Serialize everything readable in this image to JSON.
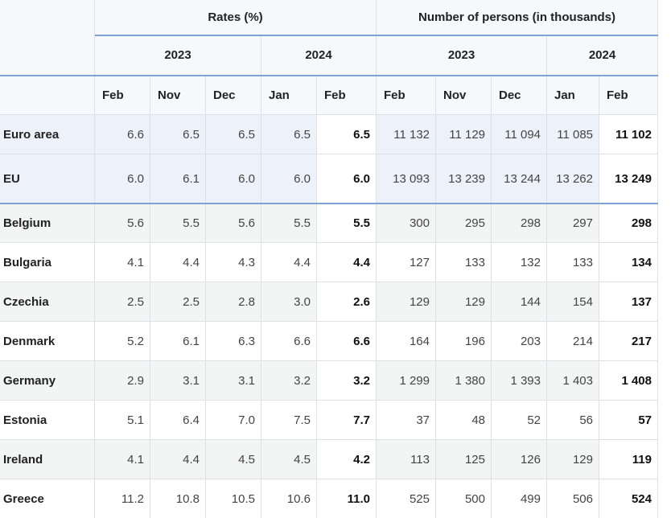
{
  "header": {
    "groups": [
      "Rates (%)",
      "Number of persons (in thousands)"
    ],
    "years": [
      "2023",
      "2024",
      "2023",
      "2024"
    ],
    "months": [
      "Feb",
      "Nov",
      "Dec",
      "Jan",
      "Feb",
      "Feb",
      "Nov",
      "Dec",
      "Jan",
      "Feb"
    ]
  },
  "rows": [
    {
      "label": "Euro area",
      "cells": [
        "6.6",
        "6.5",
        "6.5",
        "6.5",
        "6.5",
        "11 132",
        "11 129",
        "11 094",
        "11 085",
        "11 102"
      ]
    },
    {
      "label": "EU",
      "cells": [
        "6.0",
        "6.1",
        "6.0",
        "6.0",
        "6.0",
        "13 093",
        "13 239",
        "13 244",
        "13 262",
        "13 249"
      ]
    },
    {
      "label": "Belgium",
      "cells": [
        "5.6",
        "5.5",
        "5.6",
        "5.5",
        "5.5",
        "300",
        "295",
        "298",
        "297",
        "298"
      ]
    },
    {
      "label": "Bulgaria",
      "cells": [
        "4.1",
        "4.4",
        "4.3",
        "4.4",
        "4.4",
        "127",
        "133",
        "132",
        "133",
        "134"
      ]
    },
    {
      "label": "Czechia",
      "cells": [
        "2.5",
        "2.5",
        "2.8",
        "3.0",
        "2.6",
        "129",
        "129",
        "144",
        "154",
        "137"
      ]
    },
    {
      "label": "Denmark",
      "cells": [
        "5.2",
        "6.1",
        "6.3",
        "6.6",
        "6.6",
        "164",
        "196",
        "203",
        "214",
        "217"
      ]
    },
    {
      "label": "Germany",
      "cells": [
        "2.9",
        "3.1",
        "3.1",
        "3.2",
        "3.2",
        "1 299",
        "1 380",
        "1 393",
        "1 403",
        "1 408"
      ]
    },
    {
      "label": "Estonia",
      "cells": [
        "5.1",
        "6.4",
        "7.0",
        "7.5",
        "7.7",
        "37",
        "48",
        "52",
        "56",
        "57"
      ]
    },
    {
      "label": "Ireland",
      "cells": [
        "4.1",
        "4.4",
        "4.5",
        "4.5",
        "4.2",
        "113",
        "125",
        "126",
        "129",
        "119"
      ]
    },
    {
      "label": "Greece",
      "cells": [
        "11.2",
        "10.8",
        "10.5",
        "10.6",
        "11.0",
        "525",
        "500",
        "499",
        "506",
        "524"
      ]
    }
  ]
}
